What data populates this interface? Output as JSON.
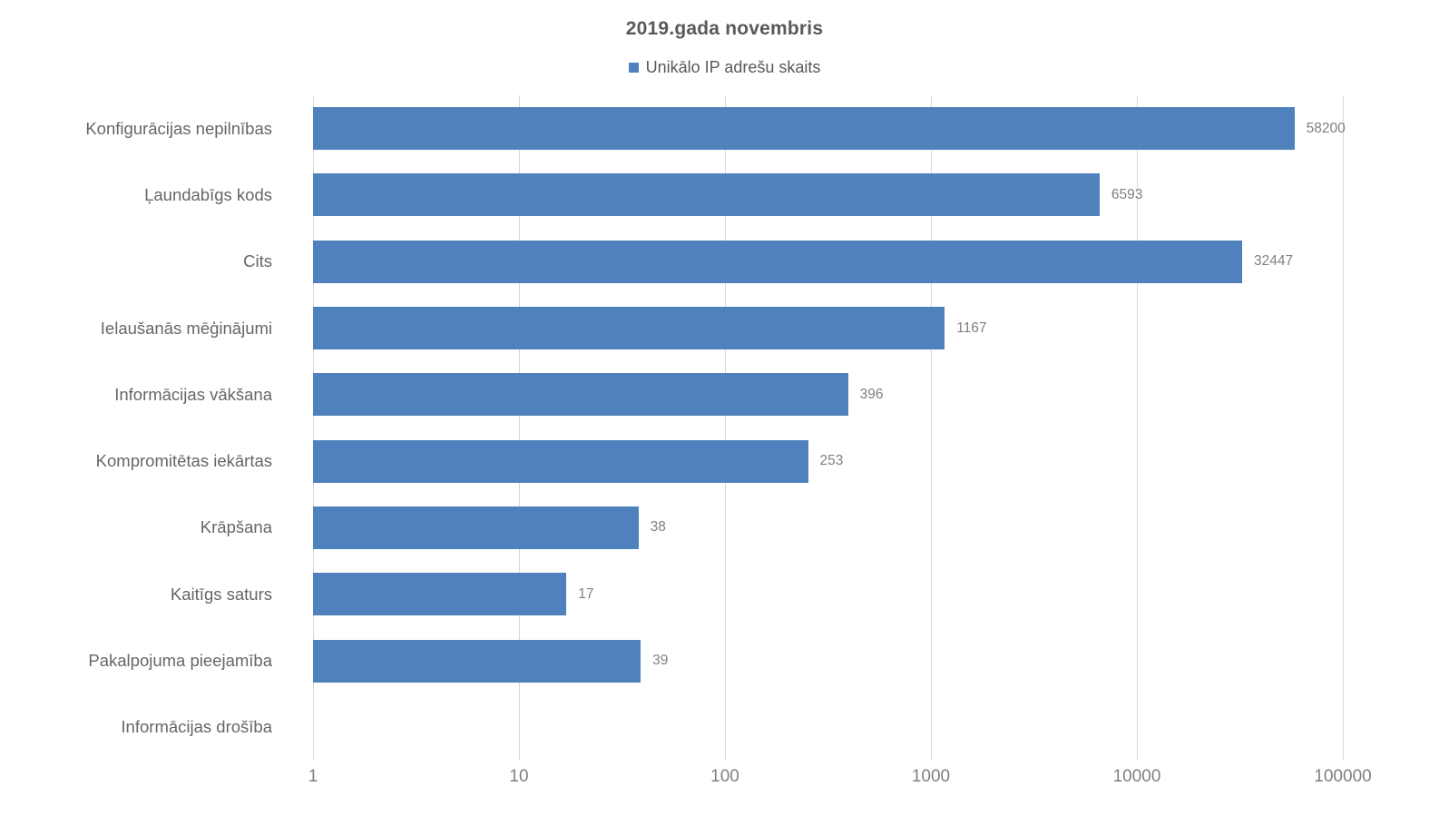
{
  "chart_data": {
    "type": "bar",
    "orientation": "horizontal",
    "title": "2019.gada novembris",
    "legend": [
      "Unikālo IP adrešu skaits"
    ],
    "legend_position": "top",
    "categories": [
      "Konfigurācijas nepilnības",
      "Ļaundabīgs kods",
      "Cits",
      "Ielaušanās mēģinājumi",
      "Informācijas vākšana",
      "Kompromitētas iekārtas",
      "Krāpšana",
      "Kaitīgs saturs",
      "Pakalpojuma pieejamība",
      "Informācijas drošība"
    ],
    "values": [
      58200,
      6593,
      32447,
      1167,
      396,
      253,
      38,
      17,
      39,
      0
    ],
    "series_name": "Unikālo IP adrešu skaits",
    "x_scale": "log10",
    "xlim": [
      1,
      100000
    ],
    "x_ticks": [
      1,
      10,
      100,
      1000,
      10000,
      100000
    ],
    "grid": "vertical-only",
    "data_labels_shown": true,
    "bar_color": "#4f81bd",
    "gridline_color": "#d9d9d9",
    "title_color": "#595959",
    "label_color": "#666666",
    "value_label_color": "#808080",
    "background_color": "#ffffff"
  }
}
